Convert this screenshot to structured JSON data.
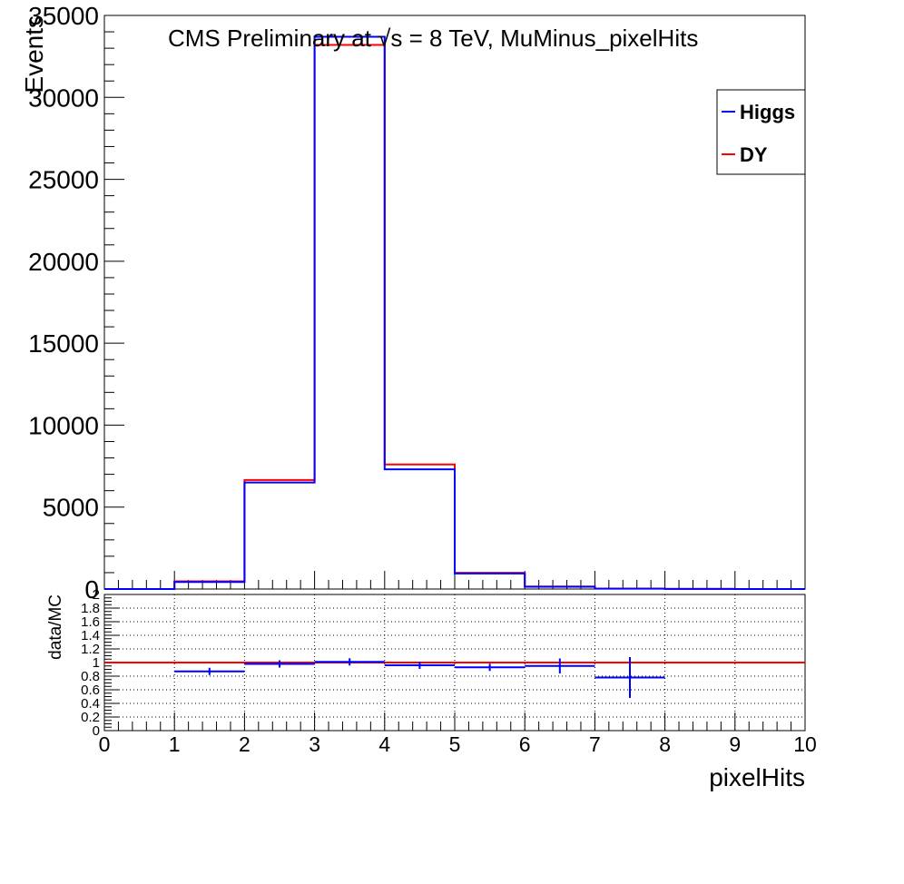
{
  "title": "CMS Preliminary at √s = 8 TeV, MuMinus_pixelHits",
  "colors": {
    "higgs": "#0000ff",
    "dy": "#ff0000",
    "axis": "#000000",
    "ratio": "#0000ff",
    "ratio_ref": "#ff0000"
  },
  "legend": {
    "items": [
      {
        "label": "Higgs",
        "color": "#0000ff"
      },
      {
        "label": "DY",
        "color": "#ff0000"
      }
    ]
  },
  "chart_data": [
    {
      "type": "line",
      "name": "main",
      "ylabel": "Events",
      "xlim": [
        0,
        10
      ],
      "ylim": [
        0,
        35000
      ],
      "y_ticks": [
        0,
        5000,
        10000,
        15000,
        20000,
        25000,
        30000,
        35000
      ],
      "y_tick_labels": [
        "0",
        "5000",
        "10000",
        "15000",
        "20000",
        "25000",
        "30000",
        "35000"
      ],
      "bin_edges": [
        0,
        1,
        2,
        3,
        4,
        5,
        6,
        7,
        8,
        9,
        10
      ],
      "legend_position": "top-right",
      "series": [
        {
          "name": "Higgs",
          "values": [
            0,
            430,
            6500,
            33700,
            7300,
            950,
            140,
            20,
            5,
            0
          ]
        },
        {
          "name": "DY",
          "values": [
            0,
            470,
            6650,
            33200,
            7600,
            990,
            150,
            25,
            6,
            0
          ]
        }
      ]
    },
    {
      "type": "scatter",
      "name": "ratio",
      "ylabel": "data/MC",
      "xlabel": "pixelHits",
      "xlim": [
        0,
        10
      ],
      "ylim": [
        0,
        2
      ],
      "x_ticks": [
        0,
        1,
        2,
        3,
        4,
        5,
        6,
        7,
        8,
        9,
        10
      ],
      "x_tick_labels": [
        "0",
        "1",
        "2",
        "3",
        "4",
        "5",
        "6",
        "7",
        "8",
        "9",
        "10"
      ],
      "y_ticks": [
        0,
        0.2,
        0.4,
        0.6,
        0.8,
        1,
        1.2,
        1.4,
        1.6,
        1.8,
        2
      ],
      "y_tick_labels": [
        "0",
        "0.2",
        "0.4",
        "0.6",
        "0.8",
        "1",
        "1.2",
        "1.4",
        "1.6",
        "1.8",
        "2"
      ],
      "grid": true,
      "reference_line": 1,
      "points": [
        {
          "x": 1.5,
          "y": 0.87,
          "xerr": 0.5,
          "yerr": 0.05
        },
        {
          "x": 2.5,
          "y": 0.98,
          "xerr": 0.5,
          "yerr": 0.01
        },
        {
          "x": 3.5,
          "y": 1.01,
          "xerr": 0.5,
          "yerr": 0.005
        },
        {
          "x": 4.5,
          "y": 0.96,
          "xerr": 0.5,
          "yerr": 0.01
        },
        {
          "x": 5.5,
          "y": 0.93,
          "xerr": 0.5,
          "yerr": 0.04
        },
        {
          "x": 6.5,
          "y": 0.95,
          "xerr": 0.5,
          "yerr": 0.11
        },
        {
          "x": 7.5,
          "y": 0.78,
          "xerr": 0.5,
          "yerr": 0.3
        }
      ]
    }
  ]
}
